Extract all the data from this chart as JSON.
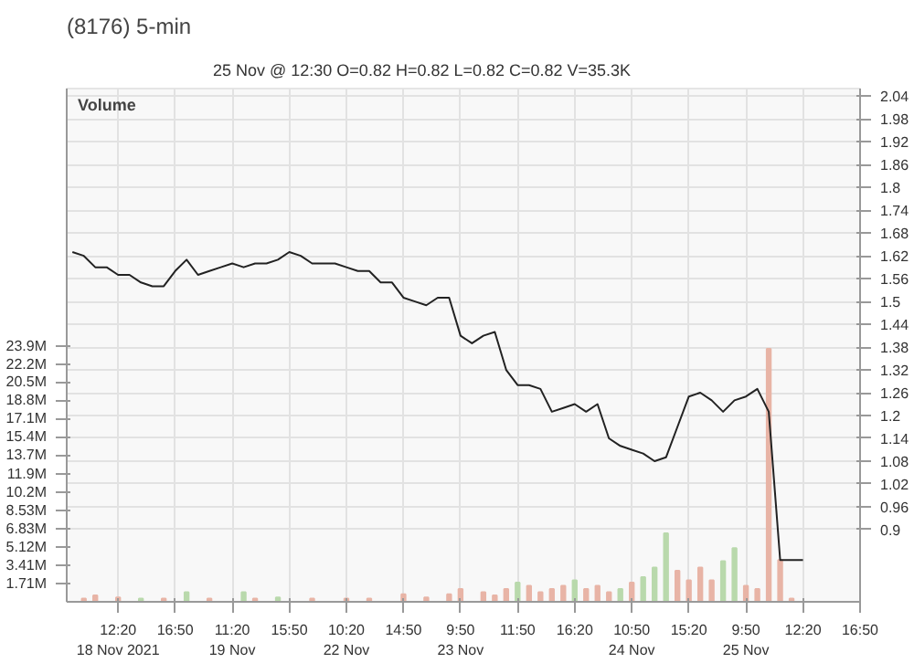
{
  "chart_data": {
    "type": "line",
    "title": "(8176) 5-min",
    "subtitle": "25 Nov @ 12:30   O=0.82     H=0.82     L=0.82     C=0.82     V=35.3K",
    "annotations": [
      "Volume"
    ],
    "categories": [
      null,
      null,
      null,
      null,
      "12:20\n18 Nov 2021",
      null,
      null,
      null,
      null,
      "16:50",
      null,
      null,
      null,
      null,
      "11:20\n19 Nov",
      null,
      null,
      null,
      null,
      "15:50",
      null,
      null,
      null,
      null,
      "10:20\n22 Nov",
      null,
      null,
      null,
      null,
      "14:50",
      null,
      null,
      null,
      null,
      "9:50\n23 Nov",
      null,
      null,
      null,
      null,
      "11:50",
      null,
      null,
      null,
      null,
      "16:20",
      null,
      null,
      null,
      null,
      "10:50\n24 Nov",
      null,
      null,
      null,
      null,
      "15:20",
      null,
      null,
      null,
      null,
      "9:50\n25 Nov",
      null,
      null,
      null,
      null,
      "12:20",
      null,
      null,
      null,
      null,
      "16:50"
    ],
    "ylim": [
      0.71,
      2.06
    ],
    "yticks": [
      0.9,
      0.96,
      1.02,
      1.08,
      1.14,
      1.2,
      1.26,
      1.32,
      1.38,
      1.44,
      1.5,
      1.56,
      1.62,
      1.68,
      1.74,
      1.8,
      1.86,
      1.92,
      1.98,
      2.04
    ],
    "y2lim": [
      0,
      47.9
    ],
    "y2ticks": [
      {
        "value": 1.71,
        "label": "1.71M"
      },
      {
        "value": 3.41,
        "label": "3.41M"
      },
      {
        "value": 5.12,
        "label": "5.12M"
      },
      {
        "value": 6.83,
        "label": "6.83M"
      },
      {
        "value": 8.53,
        "label": "8.53M"
      },
      {
        "value": 10.2,
        "label": "10.2M"
      },
      {
        "value": 11.9,
        "label": "11.9M"
      },
      {
        "value": 13.7,
        "label": "13.7M"
      },
      {
        "value": 15.4,
        "label": "15.4M"
      },
      {
        "value": 17.1,
        "label": "17.1M"
      },
      {
        "value": 18.8,
        "label": "18.8M"
      },
      {
        "value": 20.5,
        "label": "20.5M"
      },
      {
        "value": 22.2,
        "label": "22.2M"
      },
      {
        "value": 23.9,
        "label": "23.9M"
      }
    ],
    "grid": true,
    "series": [
      {
        "type": "bar",
        "axis": "y2",
        "color": "#e8b4a6",
        "values": [
          null,
          0.3,
          0.6,
          null,
          0.4,
          null,
          null,
          null,
          0.3,
          null,
          null,
          null,
          0.3,
          null,
          null,
          null,
          0.3,
          null,
          null,
          null,
          null,
          0.3,
          null,
          null,
          0.3,
          null,
          0.3,
          null,
          null,
          0.7,
          null,
          0.4,
          null,
          0.7,
          1.2,
          null,
          0.9,
          0.6,
          1.2,
          null,
          1.5,
          0.9,
          1.2,
          1.5,
          null,
          1.2,
          1.5,
          0.9,
          null,
          1.8,
          null,
          null,
          null,
          2.9,
          2.0,
          3.2,
          2.0,
          null,
          null,
          1.5,
          1.2,
          23.6,
          3.9,
          0.3,
          null,
          null,
          null,
          null,
          null,
          null
        ]
      },
      {
        "type": "bar",
        "axis": "y2",
        "color": "#b9d9ac",
        "values": [
          null,
          null,
          null,
          null,
          null,
          null,
          0.3,
          null,
          null,
          null,
          0.9,
          null,
          null,
          null,
          null,
          0.9,
          null,
          null,
          0.4,
          null,
          null,
          null,
          null,
          null,
          null,
          null,
          null,
          null,
          null,
          null,
          null,
          null,
          null,
          null,
          null,
          null,
          null,
          null,
          null,
          1.8,
          null,
          null,
          null,
          null,
          2.0,
          null,
          null,
          null,
          1.2,
          null,
          2.3,
          3.2,
          6.4,
          null,
          null,
          null,
          null,
          3.8,
          5.0,
          null,
          null,
          null,
          null,
          null,
          null,
          null,
          null,
          null,
          null,
          null
        ]
      },
      {
        "color": "#222222",
        "values": [
          1.63,
          1.62,
          1.59,
          1.59,
          1.57,
          1.57,
          1.55,
          1.54,
          1.54,
          1.58,
          1.61,
          1.57,
          1.58,
          1.59,
          1.6,
          1.59,
          1.6,
          1.6,
          1.61,
          1.63,
          1.62,
          1.6,
          1.6,
          1.6,
          1.59,
          1.58,
          1.58,
          1.55,
          1.55,
          1.51,
          1.5,
          1.49,
          1.51,
          1.51,
          1.41,
          1.39,
          1.41,
          1.42,
          1.32,
          1.28,
          1.28,
          1.27,
          1.21,
          1.22,
          1.23,
          1.21,
          1.23,
          1.14,
          1.12,
          1.11,
          1.1,
          1.08,
          1.09,
          1.17,
          1.25,
          1.26,
          1.24,
          1.21,
          1.24,
          1.25,
          1.27,
          1.21,
          0.82,
          0.82,
          0.82,
          null,
          null,
          null,
          null,
          null
        ]
      }
    ]
  }
}
